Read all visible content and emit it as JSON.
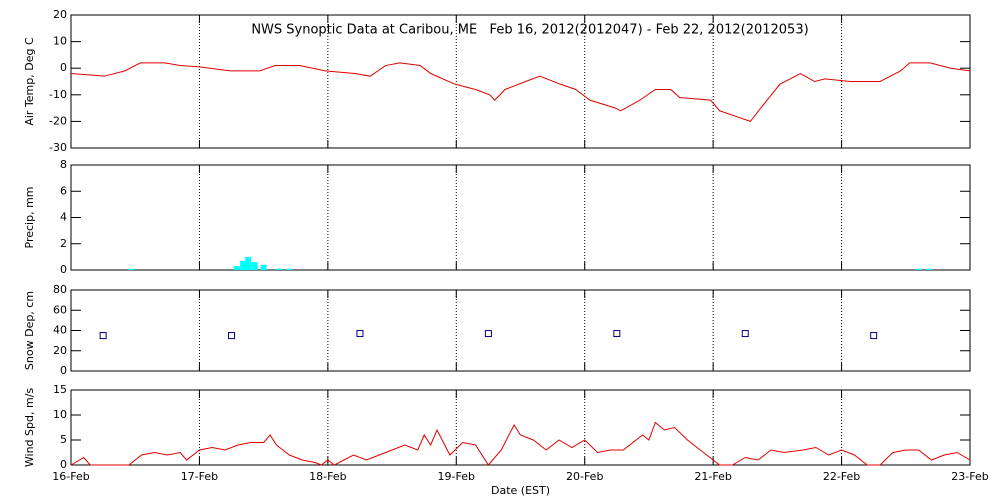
{
  "chart_data": [
    {
      "type": "line",
      "title": "NWS Synoptic Data at Caribou, ME   Feb 16, 2012(2012047) - Feb 22, 2012(2012053)",
      "ylabel": "Air Temp, Deg C",
      "color": "#e00000",
      "ylim": [
        -30,
        20
      ],
      "yticks": [
        -30,
        -20,
        -10,
        0,
        10,
        20
      ],
      "x": [
        0,
        0.26,
        0.42,
        0.54,
        0.73,
        0.85,
        1.0,
        1.24,
        1.47,
        1.59,
        1.78,
        1.98,
        2.21,
        2.33,
        2.45,
        2.56,
        2.72,
        2.8,
        2.99,
        3.15,
        3.26,
        3.3,
        3.38,
        3.54,
        3.65,
        3.81,
        3.93,
        4.04,
        4.24,
        4.28,
        4.43,
        4.55,
        4.67,
        4.74,
        4.98,
        5.05,
        5.17,
        5.29,
        5.37,
        5.52,
        5.68,
        5.79,
        5.87,
        6.07,
        6.3,
        6.46,
        6.53,
        6.69,
        6.85,
        7.0
      ],
      "values": [
        -2,
        -3,
        -1,
        2,
        2,
        1,
        0.5,
        -1,
        -1,
        1,
        1,
        -1,
        -2,
        -3,
        1,
        2,
        1,
        -2,
        -6,
        -8,
        -10,
        -12,
        -8,
        -5,
        -3,
        -6,
        -8,
        -12,
        -15,
        -16,
        -12,
        -8,
        -8,
        -11,
        -12,
        -16,
        -18,
        -20,
        -15,
        -6,
        -2,
        -5,
        -4,
        -5,
        -5,
        -1,
        2,
        2,
        0,
        -1
      ]
    },
    {
      "type": "bar",
      "ylabel": "Precip, mm",
      "color": "#00ffff",
      "ylim": [
        0,
        8
      ],
      "yticks": [
        0,
        2,
        4,
        6,
        8
      ],
      "x": [
        0.47,
        1.29,
        1.34,
        1.38,
        1.43,
        1.5,
        1.62,
        1.7,
        6.6,
        6.68
      ],
      "values": [
        0.1,
        0.3,
        0.7,
        1.0,
        0.6,
        0.4,
        0.1,
        0.1,
        0.1,
        0.1
      ]
    },
    {
      "type": "scatter",
      "ylabel": "Snow Dep, cm",
      "color": "#000080",
      "ylim": [
        0,
        80
      ],
      "yticks": [
        0,
        20,
        40,
        60,
        80
      ],
      "x": [
        0.25,
        1.25,
        2.25,
        3.25,
        4.25,
        5.25,
        6.25
      ],
      "values": [
        35,
        35,
        37,
        37,
        37,
        37,
        35
      ]
    },
    {
      "type": "line",
      "ylabel": "Wind Spd, m/s",
      "xlabel": "Date (EST)",
      "color": "#e00000",
      "ylim": [
        0,
        15
      ],
      "yticks": [
        0,
        5,
        10,
        15
      ],
      "xlim": [
        0,
        7
      ],
      "xticks": [
        {
          "value": 0,
          "label": "16-Feb"
        },
        {
          "value": 1,
          "label": "17-Feb"
        },
        {
          "value": 2,
          "label": "18-Feb"
        },
        {
          "value": 3,
          "label": "19-Feb"
        },
        {
          "value": 4,
          "label": "20-Feb"
        },
        {
          "value": 5,
          "label": "21-Feb"
        },
        {
          "value": 6,
          "label": "22-Feb"
        },
        {
          "value": 7,
          "label": "23-Feb"
        }
      ],
      "x": [
        0,
        0.1,
        0.15,
        0.45,
        0.55,
        0.65,
        0.75,
        0.85,
        0.9,
        1.0,
        1.1,
        1.2,
        1.3,
        1.4,
        1.5,
        1.55,
        1.6,
        1.7,
        1.8,
        1.9,
        1.95,
        2.0,
        2.05,
        2.2,
        2.3,
        2.4,
        2.5,
        2.6,
        2.7,
        2.75,
        2.8,
        2.85,
        2.95,
        3.05,
        3.15,
        3.25,
        3.35,
        3.45,
        3.5,
        3.6,
        3.7,
        3.8,
        3.9,
        4.0,
        4.1,
        4.2,
        4.3,
        4.45,
        4.5,
        4.55,
        4.62,
        4.7,
        4.8,
        4.9,
        5.0,
        5.05,
        5.15,
        5.25,
        5.35,
        5.45,
        5.55,
        5.7,
        5.8,
        5.9,
        6.0,
        6.1,
        6.2,
        6.3,
        6.4,
        6.5,
        6.6,
        6.7,
        6.8,
        6.9,
        7.0
      ],
      "values": [
        0,
        1.5,
        0,
        0,
        2,
        2.5,
        2,
        2.5,
        1,
        3,
        3.5,
        3,
        4,
        4.5,
        4.5,
        6,
        4,
        2,
        1,
        0.5,
        0,
        1,
        0,
        2,
        1,
        2,
        3,
        4,
        3,
        6,
        4,
        7,
        2,
        4.5,
        4,
        0,
        3,
        8,
        6,
        5,
        3,
        5,
        3.5,
        5,
        2.5,
        3,
        3,
        6,
        5,
        8.5,
        7,
        7.5,
        5,
        3,
        1,
        0,
        0,
        1.5,
        1,
        3,
        2.5,
        3,
        3.5,
        2,
        3,
        2,
        0,
        0,
        2.5,
        3,
        3,
        1,
        2,
        2.5,
        1
      ]
    }
  ]
}
